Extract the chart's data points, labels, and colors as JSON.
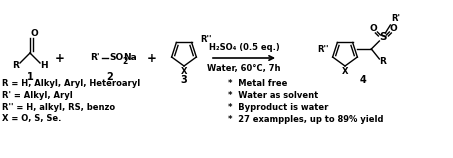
{
  "bg_color": "#ffffff",
  "fig_width": 4.53,
  "fig_height": 1.58,
  "dpi": 100,
  "text_color": "#000000",
  "bullet_points": [
    "Metal free",
    "Water as solvent",
    "Byproduct is water",
    "27 exampples, up to 89% yield"
  ],
  "R_def": "R = H, Alkyl, Aryl, Heteroaryl",
  "Rprime_def": "R' = Alkyl, Aryl",
  "Rdprime_def": "R'' = H, alkyl, RS, benzo",
  "X_def": "X = O, S, Se."
}
